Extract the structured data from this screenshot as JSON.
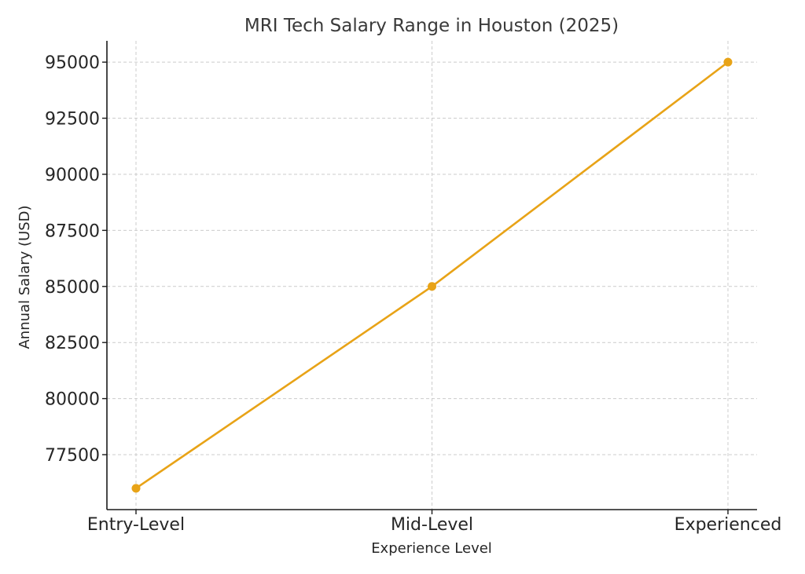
{
  "chart_data": {
    "type": "line",
    "title": "MRI Tech Salary Range in Houston (2025)",
    "xlabel": "Experience Level",
    "ylabel": "Annual Salary (USD)",
    "categories": [
      "Entry-Level",
      "Mid-Level",
      "Experienced"
    ],
    "series": [
      {
        "values": [
          76000,
          85000,
          95000
        ],
        "color": "#E8A317",
        "marker": "circle"
      }
    ],
    "yticks": [
      77500,
      80000,
      82500,
      85000,
      87500,
      90000,
      92500,
      95000
    ],
    "ylim": [
      75050,
      95950
    ],
    "grid": true,
    "legend": "none"
  }
}
